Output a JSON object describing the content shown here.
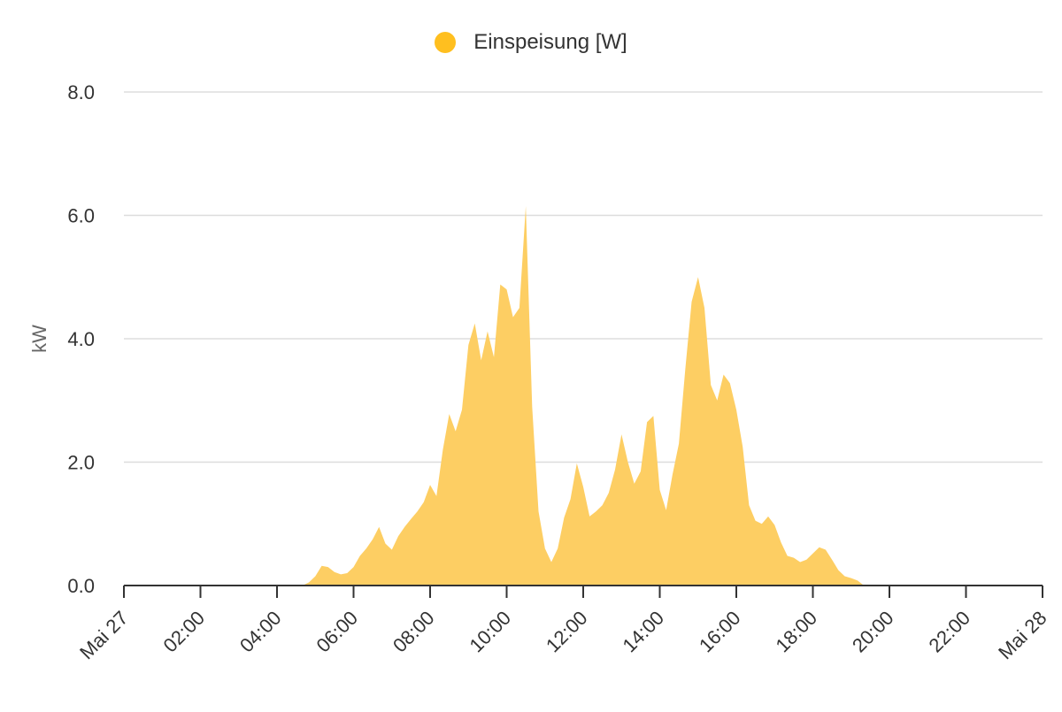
{
  "chart_data": {
    "type": "area",
    "title": "",
    "legend": {
      "position": "top-center",
      "entries": [
        "Einspeisung [W]"
      ]
    },
    "ylabel": "kW",
    "xlabel": "",
    "ylim": [
      0,
      8
    ],
    "yticks": [
      "0.0",
      "2.0",
      "4.0",
      "6.0",
      "8.0"
    ],
    "xlim": [
      "Mai 27 00:00",
      "Mai 28 00:00"
    ],
    "xticks": [
      "Mai 27",
      "02:00",
      "04:00",
      "06:00",
      "08:00",
      "10:00",
      "12:00",
      "14:00",
      "16:00",
      "18:00",
      "20:00",
      "22:00",
      "Mai 28"
    ],
    "grid": true,
    "colors": {
      "series": "#FFBF1F",
      "fill": "#FDCE63",
      "grid": "#DDDDDD",
      "axis": "#333333"
    },
    "series": [
      {
        "name": "Einspeisung [W]",
        "x": [
          "04:40",
          "04:50",
          "05:00",
          "05:10",
          "05:20",
          "05:30",
          "05:40",
          "05:50",
          "06:00",
          "06:10",
          "06:20",
          "06:30",
          "06:40",
          "06:50",
          "07:00",
          "07:10",
          "07:20",
          "07:30",
          "07:40",
          "07:50",
          "08:00",
          "08:10",
          "08:20",
          "08:30",
          "08:40",
          "08:50",
          "09:00",
          "09:10",
          "09:20",
          "09:30",
          "09:40",
          "09:50",
          "10:00",
          "10:10",
          "10:20",
          "10:30",
          "10:40",
          "10:50",
          "11:00",
          "11:10",
          "11:20",
          "11:30",
          "11:40",
          "11:50",
          "12:00",
          "12:10",
          "12:20",
          "12:30",
          "12:40",
          "12:50",
          "13:00",
          "13:10",
          "13:20",
          "13:30",
          "13:40",
          "13:50",
          "14:00",
          "14:10",
          "14:20",
          "14:30",
          "14:40",
          "14:50",
          "15:00",
          "15:10",
          "15:20",
          "15:30",
          "15:40",
          "15:50",
          "16:00",
          "16:10",
          "16:20",
          "16:30",
          "16:40",
          "16:50",
          "17:00",
          "17:10",
          "17:20",
          "17:30",
          "17:40",
          "17:50",
          "18:00",
          "18:10",
          "18:20",
          "18:30",
          "18:40",
          "18:50",
          "19:00",
          "19:10",
          "19:20"
        ],
        "values": [
          0.0,
          0.05,
          0.15,
          0.32,
          0.3,
          0.22,
          0.18,
          0.2,
          0.3,
          0.48,
          0.6,
          0.75,
          0.95,
          0.68,
          0.58,
          0.8,
          0.95,
          1.08,
          1.2,
          1.35,
          1.63,
          1.45,
          2.2,
          2.78,
          2.5,
          2.85,
          3.9,
          4.25,
          3.65,
          4.12,
          3.7,
          4.88,
          4.8,
          4.35,
          4.5,
          6.15,
          2.9,
          1.2,
          0.6,
          0.38,
          0.6,
          1.1,
          1.4,
          1.98,
          1.6,
          1.12,
          1.2,
          1.3,
          1.5,
          1.88,
          2.45,
          2.0,
          1.65,
          1.85,
          2.65,
          2.75,
          1.55,
          1.22,
          1.8,
          2.3,
          3.5,
          4.6,
          5.0,
          4.5,
          3.25,
          3.0,
          3.42,
          3.28,
          2.85,
          2.25,
          1.3,
          1.05,
          1.0,
          1.12,
          0.98,
          0.7,
          0.48,
          0.45,
          0.38,
          0.42,
          0.52,
          0.62,
          0.58,
          0.42,
          0.25,
          0.15,
          0.12,
          0.08,
          0.0
        ]
      }
    ]
  }
}
